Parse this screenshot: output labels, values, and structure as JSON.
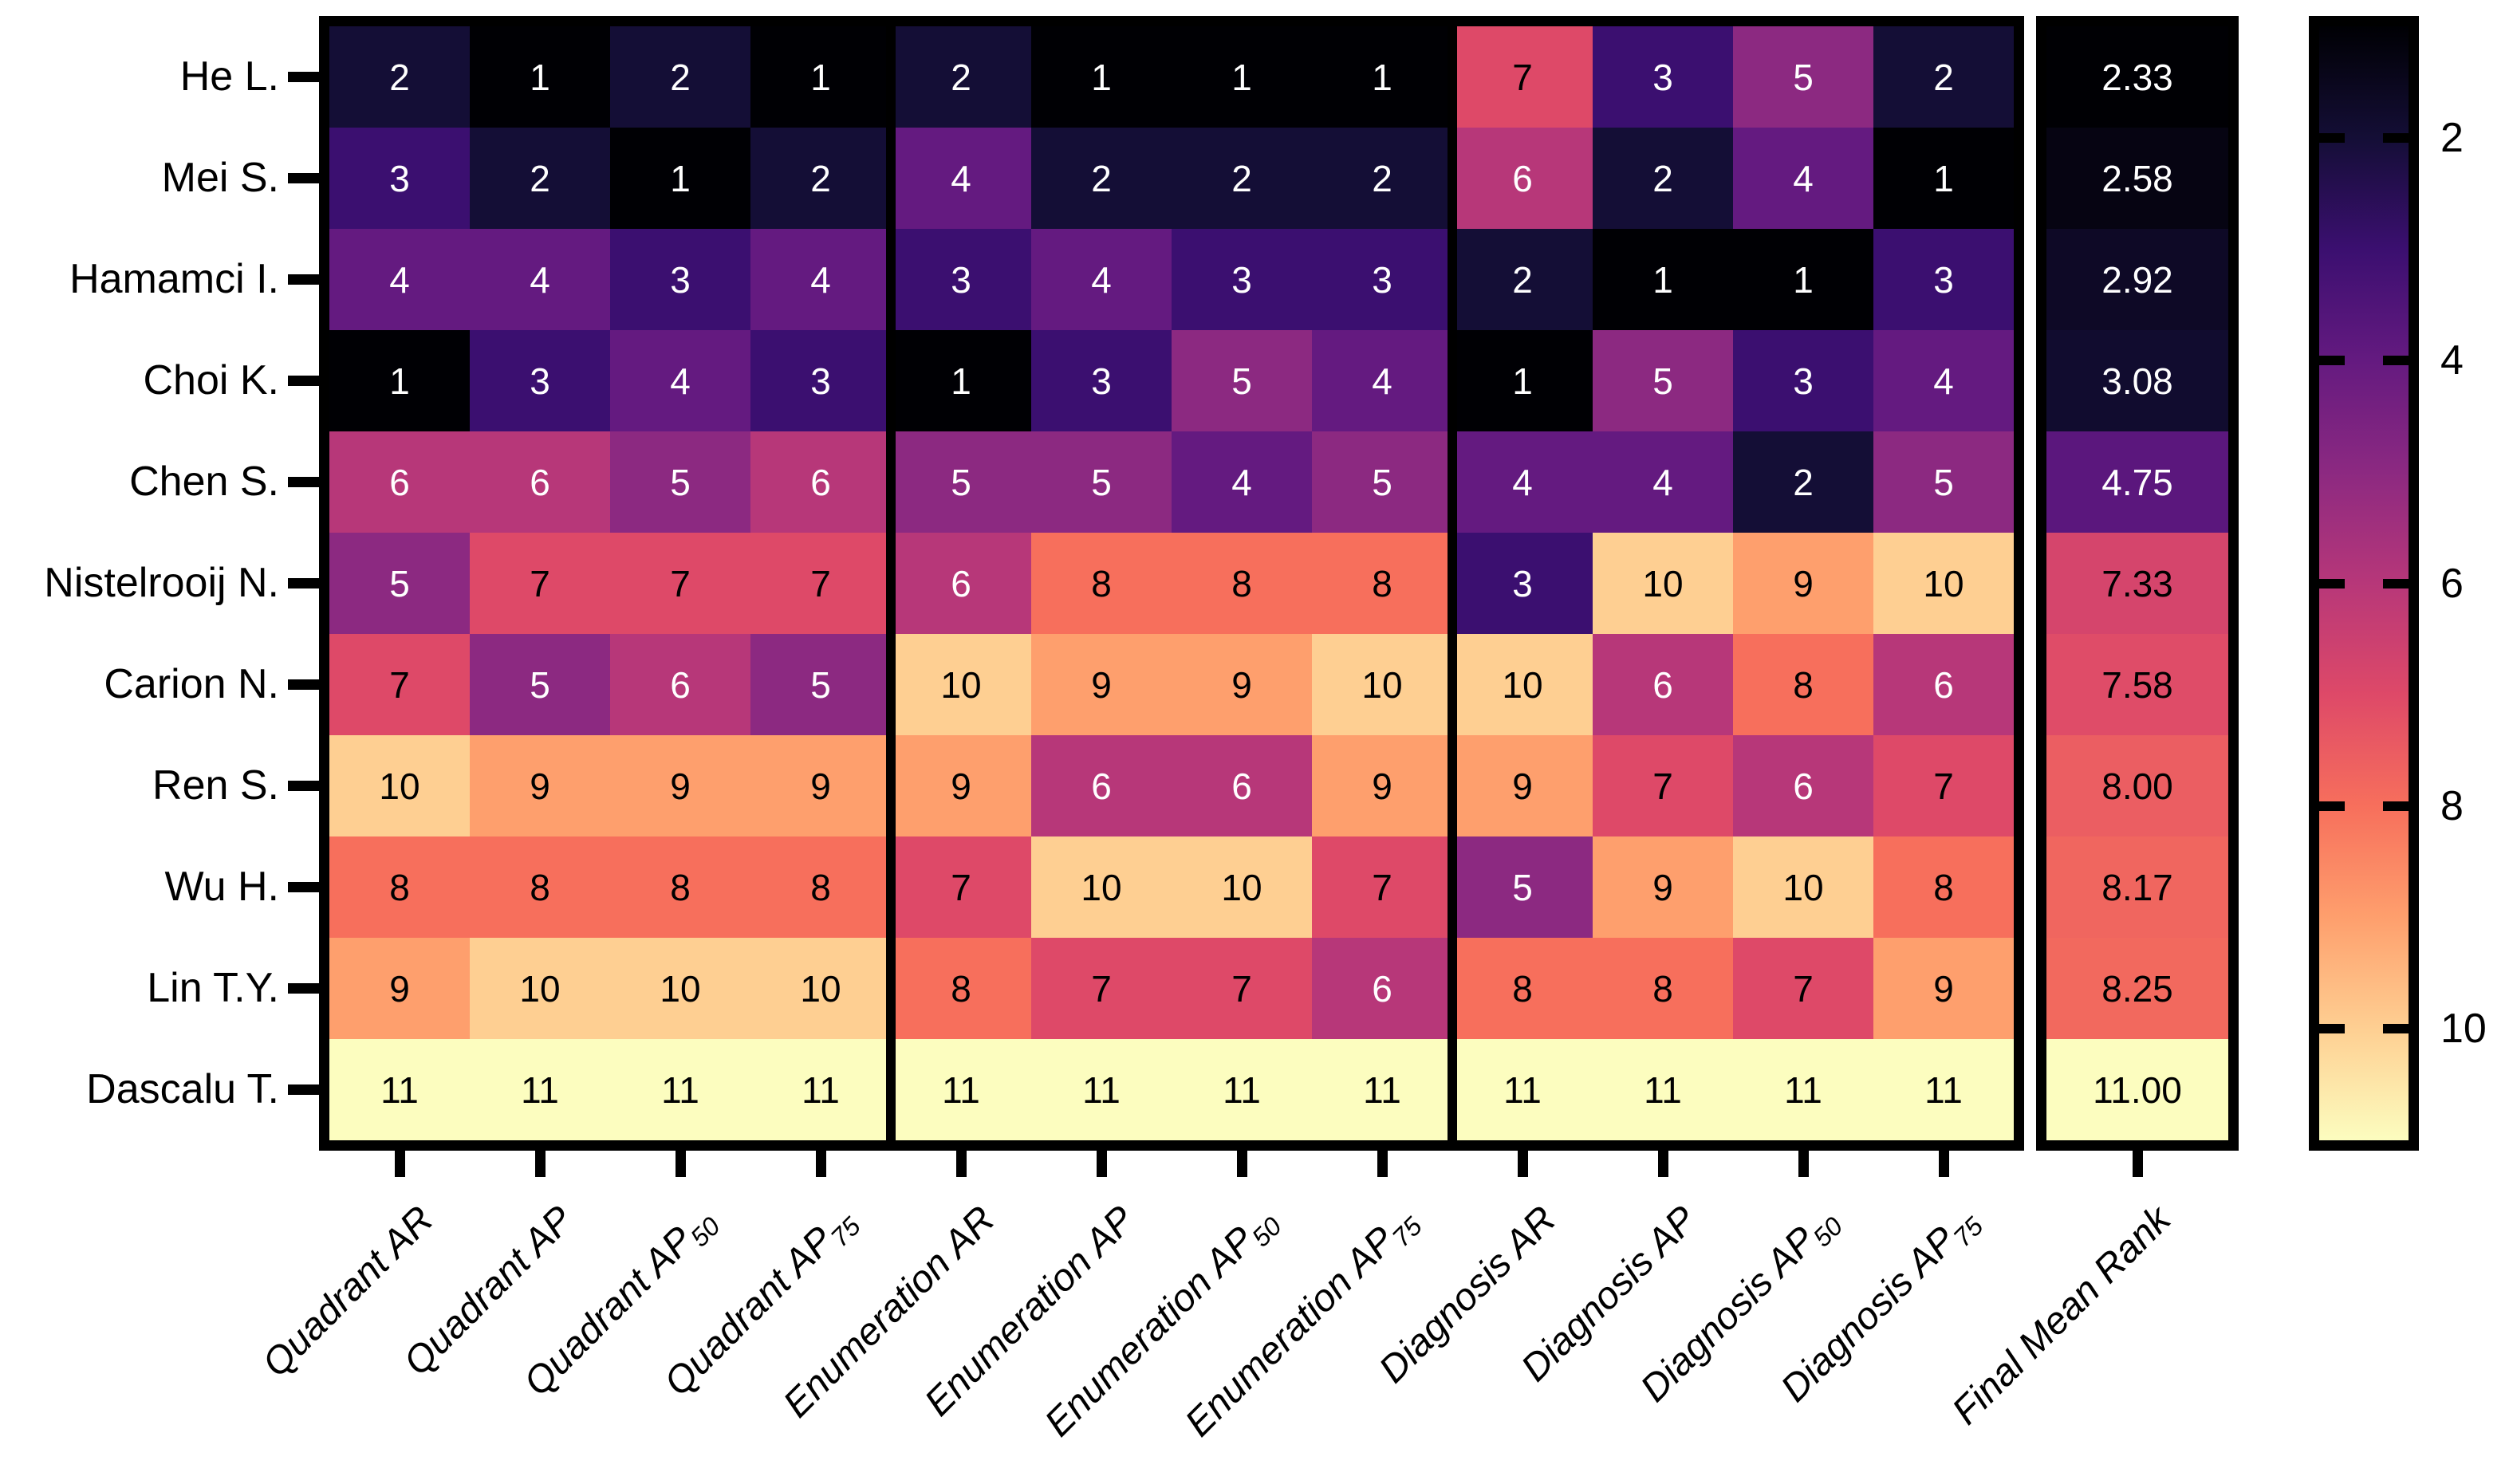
{
  "chart_data": {
    "type": "heatmap",
    "title": "",
    "colormap": "magma",
    "vmin": 1,
    "vmax": 11,
    "grid": false,
    "rows": [
      "He L.",
      "Mei S.",
      "Hamamci I.",
      "Choi K.",
      "Chen S.",
      "Nistelrooij N.",
      "Carion N.",
      "Ren S.",
      "Wu H.",
      "Lin T.Y.",
      "Dascalu T."
    ],
    "columns": [
      {
        "text": "Quadrant AR",
        "sub": ""
      },
      {
        "text": "Quadrant AP",
        "sub": ""
      },
      {
        "text": "Quadrant AP",
        "sub": "50"
      },
      {
        "text": "Quadrant AP",
        "sub": "75"
      },
      {
        "text": "Enumeration AR",
        "sub": ""
      },
      {
        "text": "Enumeration AP",
        "sub": ""
      },
      {
        "text": "Enumeration AP",
        "sub": "50"
      },
      {
        "text": "Enumeration AP",
        "sub": "75"
      },
      {
        "text": "Diagnosis AR",
        "sub": ""
      },
      {
        "text": "Diagnosis AP",
        "sub": ""
      },
      {
        "text": "Diagnosis AP",
        "sub": "50"
      },
      {
        "text": "Diagnosis AP",
        "sub": "75"
      }
    ],
    "column_groups": [
      {
        "name": "Quadrant",
        "cols": 4
      },
      {
        "name": "Enumeration",
        "cols": 4
      },
      {
        "name": "Diagnosis",
        "cols": 4
      }
    ],
    "values": [
      [
        2,
        1,
        2,
        1,
        2,
        1,
        1,
        1,
        7,
        3,
        5,
        2
      ],
      [
        3,
        2,
        1,
        2,
        4,
        2,
        2,
        2,
        6,
        2,
        4,
        1
      ],
      [
        4,
        4,
        3,
        4,
        3,
        4,
        3,
        3,
        2,
        1,
        1,
        3
      ],
      [
        1,
        3,
        4,
        3,
        1,
        3,
        5,
        4,
        1,
        5,
        3,
        4
      ],
      [
        6,
        6,
        5,
        6,
        5,
        5,
        4,
        5,
        4,
        4,
        2,
        5
      ],
      [
        5,
        7,
        7,
        7,
        6,
        8,
        8,
        8,
        3,
        10,
        9,
        10
      ],
      [
        7,
        5,
        6,
        5,
        10,
        9,
        9,
        10,
        10,
        6,
        8,
        6
      ],
      [
        10,
        9,
        9,
        9,
        9,
        6,
        6,
        9,
        9,
        7,
        6,
        7
      ],
      [
        8,
        8,
        8,
        8,
        7,
        10,
        10,
        7,
        5,
        9,
        10,
        8
      ],
      [
        9,
        10,
        10,
        10,
        8,
        7,
        7,
        6,
        8,
        8,
        7,
        9
      ],
      [
        11,
        11,
        11,
        11,
        11,
        11,
        11,
        11,
        11,
        11,
        11,
        11
      ]
    ],
    "rank_colors": [
      "#000004",
      "#140e36",
      "#3b0f70",
      "#641a80",
      "#8c2981",
      "#b73779",
      "#de4968",
      "#f76f5c",
      "#fe9f6d",
      "#fecf92",
      "#fcfdbf"
    ],
    "annotation_text_light": "#ffffff",
    "annotation_text_dark": "#000000",
    "light_text_threshold": 6.5,
    "final_column": {
      "label": {
        "text": "Final Mean Rank",
        "sub": ""
      },
      "values": [
        "2.33",
        "2.58",
        "2.92",
        "3.08",
        "4.75",
        "7.33",
        "7.58",
        "8.00",
        "8.17",
        "8.25",
        "11.00"
      ],
      "colors": [
        "#000004",
        "#060412",
        "#0e0926",
        "#110c2f",
        "#5b177d",
        "#d5456c",
        "#df4c68",
        "#eb5e62",
        "#f0665f",
        "#f2695e",
        "#fcfdbf"
      ]
    },
    "colorbar": {
      "position": "right",
      "tick_labels": [
        "2",
        "4",
        "6",
        "8",
        "10"
      ],
      "tick_values": [
        2,
        4,
        6,
        8,
        10
      ],
      "gradient_stops": [
        "#000004",
        "#140e36",
        "#3b0f70",
        "#641a80",
        "#8c2981",
        "#b73779",
        "#de4968",
        "#f76f5c",
        "#fe9f6d",
        "#fecf92",
        "#fcfdbf"
      ]
    }
  }
}
